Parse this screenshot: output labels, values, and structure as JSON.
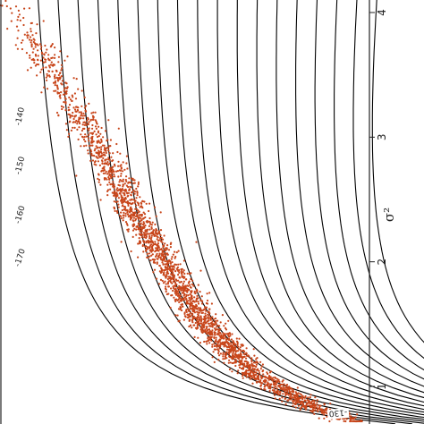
{
  "chart_data": {
    "type": "scatter",
    "title": "",
    "ylabel": "σ²",
    "ylim": [
      0.7,
      4.15
    ],
    "y_ticks": [
      "1",
      "2",
      "3",
      "4"
    ],
    "grid": false,
    "colors": {
      "points": "#c8461b",
      "contours": "#000000",
      "axis": "#222222"
    },
    "contour_labels": [
      "-140",
      "-150",
      "-160",
      "-170",
      "-130"
    ],
    "contour_levels": [
      -270,
      -250,
      -230,
      -210,
      -190,
      -170,
      -160,
      -150,
      -140,
      -130,
      -125,
      -122,
      -120,
      -118,
      -116,
      -114,
      -112,
      -110
    ],
    "sample_band": {
      "description_values": "posterior draws concentrated along a curved ridge",
      "center_points": [
        [
          0.0,
          4.15
        ],
        [
          0.15,
          3.6
        ],
        [
          0.3,
          3.0
        ],
        [
          0.48,
          2.2
        ],
        [
          0.65,
          1.55
        ],
        [
          0.82,
          1.1
        ],
        [
          1.0,
          0.85
        ],
        [
          1.15,
          0.72
        ]
      ],
      "n_points": 2600
    }
  }
}
